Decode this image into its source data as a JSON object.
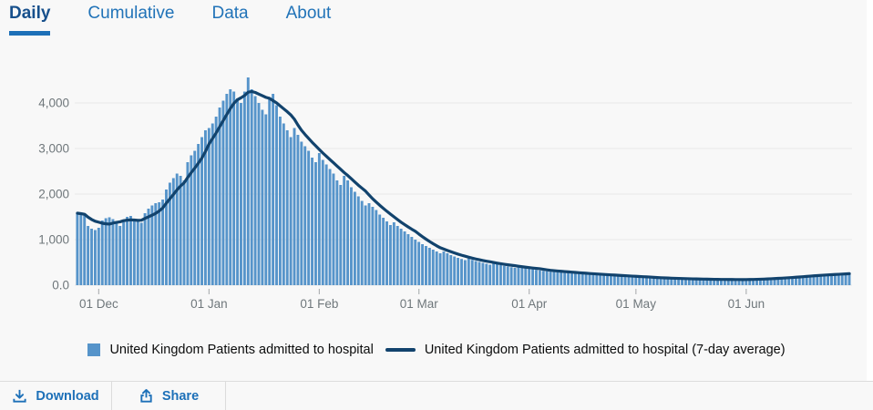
{
  "tabs": {
    "items": [
      {
        "label": "Daily",
        "active": true
      },
      {
        "label": "Cumulative",
        "active": false
      },
      {
        "label": "Data",
        "active": false
      },
      {
        "label": "About",
        "active": false
      }
    ]
  },
  "chart_data": {
    "type": "bar",
    "title": "",
    "xlabel": "",
    "ylabel": "",
    "grid": "horizontal",
    "legend_position": "bottom",
    "ylim": [
      0,
      5100
    ],
    "y_tick_values": [
      0,
      1000,
      2000,
      3000,
      4000
    ],
    "y_tick_labels": [
      "0.0",
      "1,000",
      "2,000",
      "3,000",
      "4,000"
    ],
    "x_tick_labels": [
      "01 Dec",
      "01 Jan",
      "01 Feb",
      "01 Mar",
      "01 Apr",
      "01 May",
      "01 Jun"
    ],
    "x_tick_day_index": [
      6,
      37,
      68,
      96,
      127,
      157,
      188
    ],
    "series": [
      {
        "name": "United Kingdom Patients admitted to hospital",
        "type": "bar",
        "color": "#5694ca",
        "values": [
          1580,
          1560,
          1530,
          1300,
          1240,
          1210,
          1260,
          1420,
          1470,
          1490,
          1450,
          1350,
          1300,
          1430,
          1500,
          1520,
          1460,
          1400,
          1370,
          1580,
          1680,
          1750,
          1800,
          1820,
          1880,
          2100,
          2250,
          2350,
          2450,
          2400,
          2300,
          2700,
          2850,
          2950,
          3100,
          3250,
          3400,
          3450,
          3550,
          3700,
          3900,
          4050,
          4200,
          4300,
          4250,
          4100,
          4000,
          4250,
          4560,
          4300,
          4150,
          4000,
          3850,
          3750,
          4100,
          4200,
          3950,
          3700,
          3550,
          3400,
          3250,
          3450,
          3300,
          3150,
          3050,
          2950,
          2800,
          2700,
          2900,
          2750,
          2650,
          2550,
          2450,
          2300,
          2200,
          2400,
          2300,
          2150,
          2050,
          1950,
          1850,
          1750,
          1800,
          1720,
          1650,
          1550,
          1480,
          1400,
          1320,
          1380,
          1300,
          1240,
          1180,
          1120,
          1060,
          1000,
          950,
          900,
          860,
          820,
          780,
          740,
          700,
          740,
          700,
          660,
          630,
          600,
          575,
          550,
          585,
          555,
          530,
          510,
          490,
          470,
          450,
          480,
          460,
          440,
          425,
          410,
          395,
          380,
          400,
          385,
          370,
          360,
          348,
          336,
          325,
          315,
          305,
          296,
          308,
          298,
          288,
          279,
          270,
          262,
          254,
          265,
          256,
          248,
          240,
          233,
          226,
          220,
          230,
          222,
          215,
          208,
          201,
          195,
          189,
          196,
          190,
          184,
          178,
          172,
          167,
          162,
          157,
          153,
          158,
          154,
          150,
          146,
          142,
          139,
          136,
          140,
          137,
          134,
          131,
          129,
          127,
          125,
          129,
          127,
          125,
          124,
          123,
          122,
          121,
          125,
          124,
          123,
          127,
          130,
          133,
          137,
          141,
          145,
          149,
          154,
          158,
          163,
          168,
          174,
          180,
          186,
          192,
          198,
          205,
          212,
          219,
          226,
          221,
          229,
          236,
          243,
          237,
          250,
          257,
          252,
          260,
          266
        ]
      },
      {
        "name": "United Kingdom Patients admitted to hospital (7-day average)",
        "type": "line",
        "color": "#12436d",
        "derived_from": "trailing 7-day mean of the daily bar values"
      }
    ]
  },
  "footer": {
    "download_label": "Download",
    "share_label": "Share"
  },
  "colors": {
    "page_background": "#f8f8f8",
    "bar_fill": "#5694ca",
    "average_line": "#12436d",
    "tab_blue": "#1d70b8",
    "gridline": "#e7e7e7",
    "axis_text": "#6f777b",
    "legend_text": "#0b0c0c"
  }
}
